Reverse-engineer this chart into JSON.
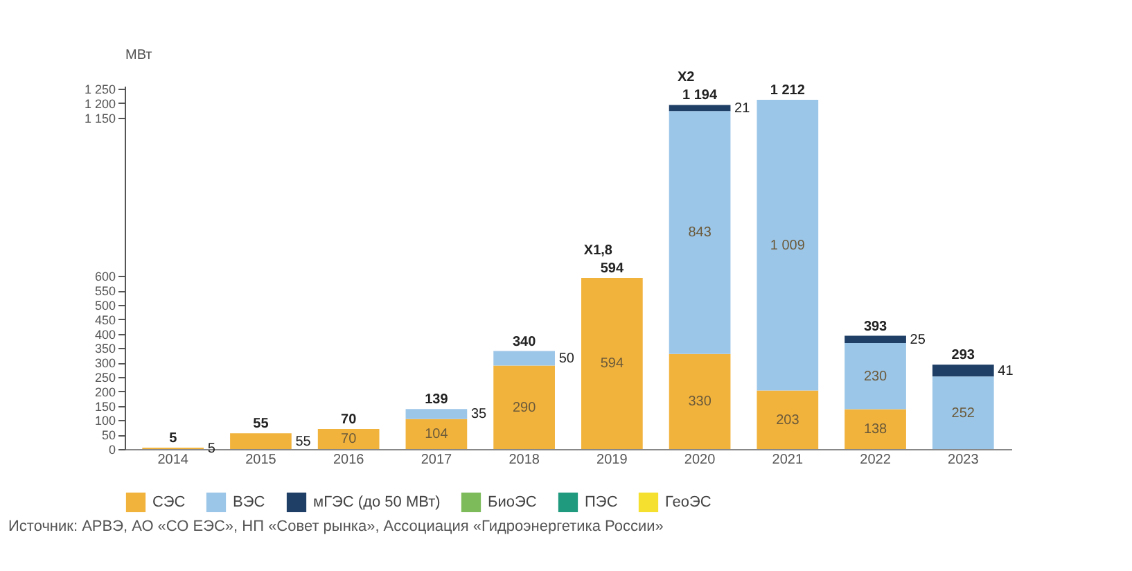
{
  "chart_data": {
    "type": "bar",
    "stacked": true,
    "ylabel": "МВт",
    "categories": [
      "2014",
      "2015",
      "2016",
      "2017",
      "2018",
      "2019",
      "2020",
      "2021",
      "2022",
      "2023"
    ],
    "series": [
      {
        "name": "СЭС",
        "color": "#f2b33d",
        "values": [
          5,
          55,
          70,
          104,
          290,
          594,
          330,
          203,
          138,
          null
        ]
      },
      {
        "name": "ВЭС",
        "color": "#9cc6e8",
        "values": [
          null,
          null,
          null,
          35,
          50,
          null,
          843,
          1009,
          230,
          252
        ]
      },
      {
        "name": "мГЭС (до 50 МВт)",
        "color": "#1f3f66",
        "values": [
          null,
          null,
          null,
          null,
          null,
          null,
          21,
          null,
          25,
          41
        ]
      },
      {
        "name": "БиоЭС",
        "color": "#7dbb5a",
        "values": [
          null,
          null,
          null,
          null,
          null,
          null,
          null,
          null,
          null,
          null
        ]
      },
      {
        "name": "ПЭС",
        "color": "#1f9a7e",
        "values": [
          null,
          null,
          null,
          null,
          null,
          null,
          null,
          null,
          null,
          null
        ]
      },
      {
        "name": "ГеоЭС",
        "color": "#f5e030",
        "values": [
          null,
          null,
          null,
          null,
          null,
          null,
          null,
          null,
          null,
          null
        ]
      }
    ],
    "totals": [
      "5",
      "55",
      "70",
      "139",
      "340",
      "594",
      "1 194",
      "1 212",
      "393",
      "293"
    ],
    "data_labels": true,
    "ylim": [
      0,
      1260
    ],
    "yticks": [
      0,
      50,
      100,
      150,
      200,
      250,
      300,
      350,
      400,
      450,
      500,
      550,
      600,
      {
        "value": 1150,
        "label": "1 150"
      },
      {
        "value": 1200,
        "label": "1 200"
      },
      {
        "value": 1250,
        "label": "1 250"
      }
    ],
    "grid": false,
    "legend": "bottom",
    "annotations": [
      {
        "text": "X1,8",
        "x": "2019",
        "y": 594
      },
      {
        "text": "X2",
        "x": "2020",
        "y": 1194
      },
      "Источник: АРВЭ, АО «СО ЕЭС», НП «Совет рынка», Ассоциация «Гидроэнергетика России»"
    ]
  }
}
